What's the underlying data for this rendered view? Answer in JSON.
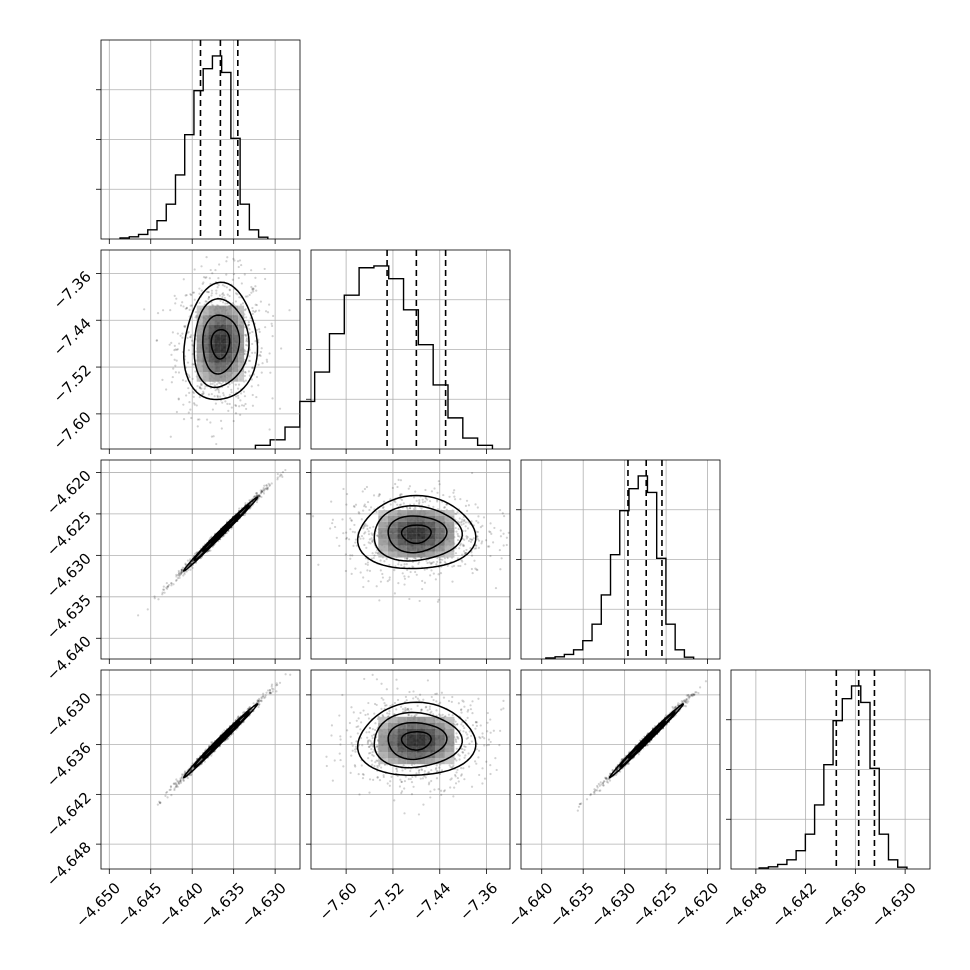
{
  "chart_data": {
    "type": "corner",
    "parameters": [
      {
        "range": [
          -4.651,
          -4.627
        ],
        "ticks": [
          -4.65,
          -4.645,
          -4.64,
          -4.635,
          -4.63
        ],
        "tick_labels": [
          "−4.650",
          "−4.645",
          "−4.640",
          "−4.635",
          "−4.630"
        ],
        "mean": -4.6366,
        "sigma": 0.0022,
        "quantiles": [
          -4.639,
          -4.6366,
          -4.6345
        ]
      },
      {
        "range": [
          -7.66,
          -7.32
        ],
        "ticks": [
          -7.6,
          -7.52,
          -7.44,
          -7.36
        ],
        "tick_labels": [
          "−7.60",
          "−7.52",
          "−7.44",
          "−7.36"
        ],
        "mean": -7.48,
        "sigma": 0.05,
        "quantiles": [
          -7.53,
          -7.48,
          -7.43
        ]
      },
      {
        "range": [
          -4.6425,
          -4.6185
        ],
        "ticks": [
          -4.64,
          -4.635,
          -4.63,
          -4.625,
          -4.62
        ],
        "tick_labels": [
          "−4.640",
          "−4.635",
          "−4.630",
          "−4.625",
          "−4.620"
        ],
        "mean": -4.6274,
        "sigma": 0.0022,
        "quantiles": [
          -4.6296,
          -4.6274,
          -4.6255
        ]
      },
      {
        "range": [
          -4.651,
          -4.627
        ],
        "ticks": [
          -4.648,
          -4.642,
          -4.636,
          -4.63
        ],
        "tick_labels": [
          "−4.648",
          "−4.642",
          "−4.636",
          "−4.630"
        ],
        "mean": -4.6355,
        "sigma": 0.0022,
        "quantiles": [
          -4.6383,
          -4.6356,
          -4.6337
        ]
      }
    ],
    "histograms": [
      [
        0.006,
        0.012,
        0.025,
        0.05,
        0.1,
        0.19,
        0.35,
        0.57,
        0.81,
        0.93,
        1.0,
        0.91,
        0.55,
        0.19,
        0.05,
        0.01
      ],
      [
        0.02,
        0.05,
        0.12,
        0.26,
        0.42,
        0.63,
        0.84,
        0.99,
        1.0,
        0.93,
        0.76,
        0.57,
        0.35,
        0.17,
        0.06,
        0.02
      ],
      [
        0.006,
        0.012,
        0.025,
        0.05,
        0.1,
        0.19,
        0.35,
        0.57,
        0.81,
        0.93,
        1.0,
        0.91,
        0.55,
        0.19,
        0.05,
        0.01
      ],
      [
        0.006,
        0.012,
        0.025,
        0.05,
        0.1,
        0.19,
        0.35,
        0.57,
        0.81,
        0.93,
        1.0,
        0.91,
        0.55,
        0.19,
        0.05,
        0.01
      ]
    ],
    "correlations": {
      "1-0": 0.05,
      "2-0": 0.995,
      "2-1": 0.03,
      "3-0": 0.995,
      "3-1": 0.03,
      "3-2": 0.995
    },
    "contour_levels_sigma": [
      0.5,
      1.0,
      1.5,
      2.0
    ],
    "grid": true
  }
}
